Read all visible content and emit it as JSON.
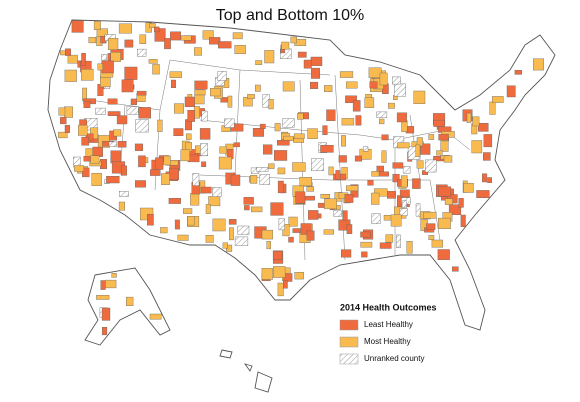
{
  "title": "Top and Bottom 10%",
  "legend": {
    "title": "2014 Health Outcomes",
    "items": [
      {
        "label": "Least Healthy",
        "color": "#ef6a3c"
      },
      {
        "label": "Most Healthy",
        "color": "#f9bb50"
      },
      {
        "label": "Unranked county",
        "pattern": "hatch"
      }
    ]
  }
}
